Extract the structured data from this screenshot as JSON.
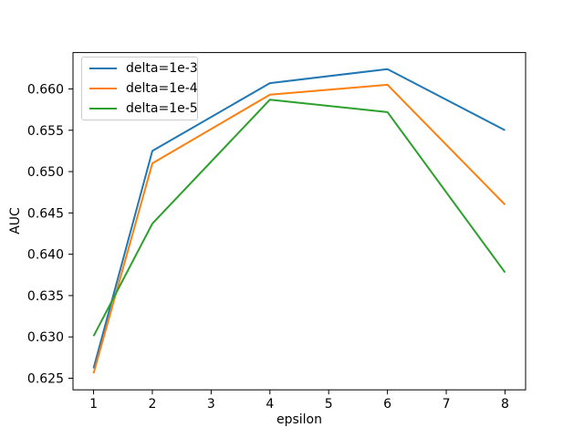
{
  "figure": {
    "background": "#ffffff",
    "xlabel": "epsilon",
    "ylabel": "AUC"
  },
  "chart_data": {
    "type": "line",
    "title": "",
    "xlabel": "epsilon",
    "ylabel": "AUC",
    "x": [
      1,
      2,
      4,
      6,
      8
    ],
    "series": [
      {
        "name": "delta=1e-3",
        "color": "#1f77b4",
        "values": [
          0.6262,
          0.6525,
          0.6607,
          0.6624,
          0.655
        ]
      },
      {
        "name": "delta=1e-4",
        "color": "#ff7f0e",
        "values": [
          0.6256,
          0.651,
          0.6593,
          0.6605,
          0.646
        ]
      },
      {
        "name": "delta=1e-5",
        "color": "#2ca02c",
        "values": [
          0.6301,
          0.6437,
          0.6587,
          0.6572,
          0.6378
        ]
      }
    ],
    "xlim": [
      0.65,
      8.35
    ],
    "ylim": [
      0.6236,
      0.6644
    ],
    "x_ticks": [
      "1",
      "2",
      "3",
      "4",
      "5",
      "6",
      "7",
      "8"
    ],
    "x_tick_values": [
      1,
      2,
      3,
      4,
      5,
      6,
      7,
      8
    ],
    "y_ticks": [
      "0.625",
      "0.630",
      "0.635",
      "0.640",
      "0.645",
      "0.650",
      "0.655",
      "0.660"
    ],
    "y_tick_values": [
      0.625,
      0.63,
      0.635,
      0.64,
      0.645,
      0.65,
      0.655,
      0.66
    ],
    "grid": false,
    "legend_position": "upper-left",
    "axis_color": "#000000"
  }
}
